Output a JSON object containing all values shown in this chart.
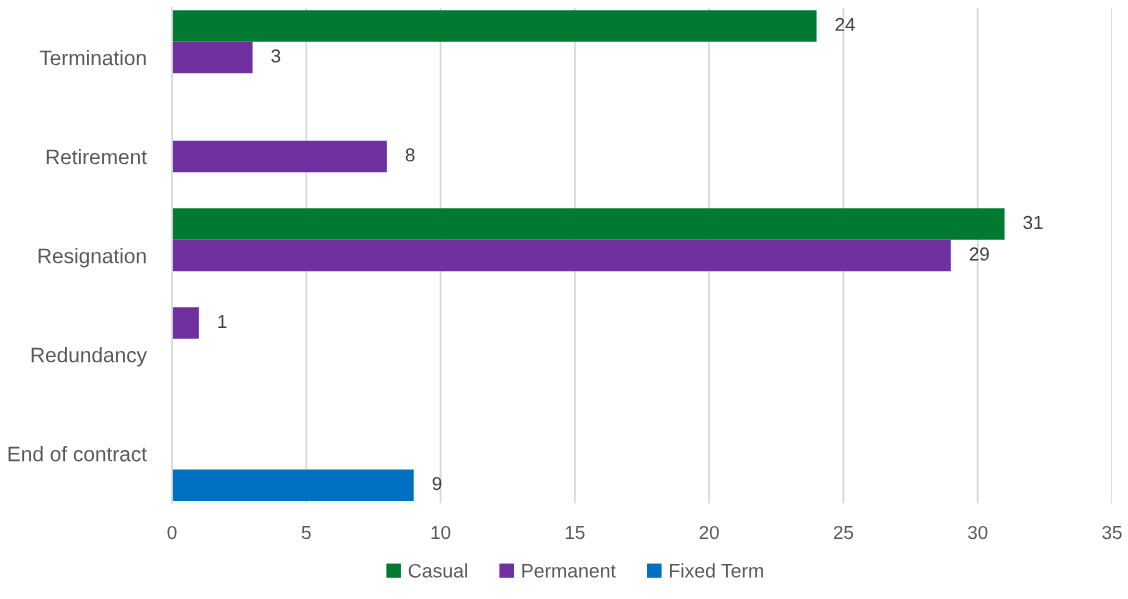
{
  "chart_data": {
    "type": "bar",
    "orientation": "horizontal",
    "categories": [
      "Termination",
      "Retirement",
      "Resignation",
      "Redundancy",
      "End of contract"
    ],
    "series": [
      {
        "name": "Casual",
        "color": "#007a33",
        "colors": [
          "#007a33",
          "#007a33",
          "#007a33",
          "#7030a0",
          "#007a33"
        ],
        "values": [
          24,
          null,
          31,
          1,
          null
        ]
      },
      {
        "name": "Permanent",
        "color": "#7030a0",
        "values": [
          3,
          8,
          29,
          null,
          null
        ]
      },
      {
        "name": "Fixed Term",
        "color": "#0070c0",
        "values": [
          null,
          null,
          null,
          null,
          9
        ]
      }
    ],
    "xlim": [
      0,
      35
    ],
    "xticks": [
      0,
      5,
      10,
      15,
      20,
      25,
      30,
      35
    ],
    "grid": "x",
    "legend": "bottom",
    "data_labels": true
  }
}
